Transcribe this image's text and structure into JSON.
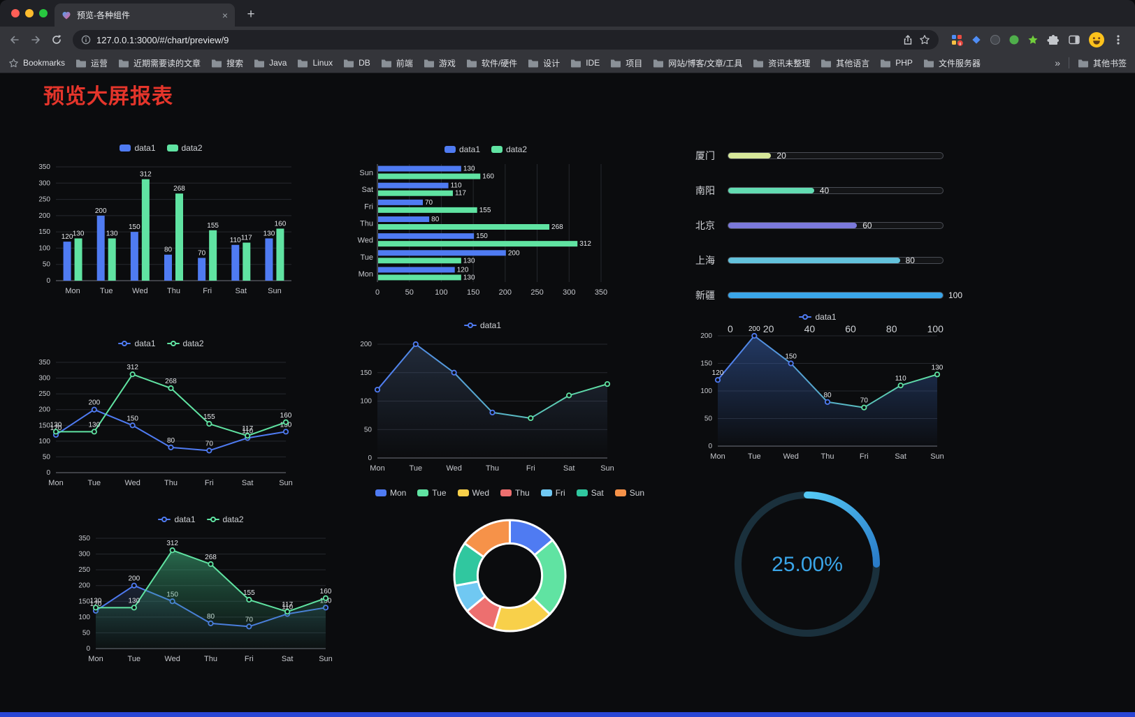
{
  "browser": {
    "tab_title": "预览-各种组件",
    "url": "127.0.0.1:3000/#/chart/preview/9",
    "bookmarks_label": "Bookmarks",
    "bookmarks": [
      "运营",
      "近期需要读的文章",
      "搜索",
      "Java",
      "Linux",
      "DB",
      "前端",
      "游戏",
      "软件/硬件",
      "设计",
      "IDE",
      "项目",
      "网站/博客/文章/工具",
      "资讯未整理",
      "其他语言",
      "PHP",
      "文件服务器"
    ],
    "overflow": "»",
    "other_bookmarks": "其他书签"
  },
  "page": {
    "title": "预览大屏报表",
    "title_color": "#e5352b",
    "bottom_bar_color": "#2a46d4"
  },
  "chart_data": [
    {
      "type": "bar",
      "legend": [
        "data1",
        "data2"
      ],
      "categories": [
        "Mon",
        "Tue",
        "Wed",
        "Thu",
        "Fri",
        "Sat",
        "Sun"
      ],
      "series": [
        {
          "name": "data1",
          "color": "#4f7bf2",
          "values": [
            120,
            200,
            150,
            80,
            70,
            110,
            130
          ]
        },
        {
          "name": "data2",
          "color": "#60e3a2",
          "values": [
            130,
            130,
            312,
            268,
            155,
            117,
            160
          ]
        }
      ],
      "ylim": [
        0,
        350
      ],
      "ystep": 50,
      "show_labels": true
    },
    {
      "type": "hbar",
      "legend": [
        "data1",
        "data2"
      ],
      "categories": [
        "Mon",
        "Tue",
        "Wed",
        "Thu",
        "Fri",
        "Sat",
        "Sun"
      ],
      "series": [
        {
          "name": "data1",
          "color": "#4f7bf2",
          "values": [
            120,
            200,
            150,
            80,
            70,
            110,
            130
          ]
        },
        {
          "name": "data2",
          "color": "#60e3a2",
          "values": [
            130,
            130,
            312,
            268,
            155,
            117,
            160
          ]
        }
      ],
      "xlim": [
        0,
        350
      ],
      "xstep": 50,
      "show_labels": true
    },
    {
      "type": "progress",
      "max": 100,
      "rows": [
        {
          "label": "厦门",
          "value": 20,
          "color": "#d7e89a"
        },
        {
          "label": "南阳",
          "value": 40,
          "color": "#63dcb2"
        },
        {
          "label": "北京",
          "value": 60,
          "color": "#7b79da"
        },
        {
          "label": "上海",
          "value": 80,
          "color": "#63c2dc"
        },
        {
          "label": "新疆",
          "value": 100,
          "color": "#3aa5e8"
        }
      ],
      "ticks": [
        0,
        20,
        40,
        60,
        80,
        100
      ]
    },
    {
      "type": "line",
      "legend": [
        "data1",
        "data2"
      ],
      "categories": [
        "Mon",
        "Tue",
        "Wed",
        "Thu",
        "Fri",
        "Sat",
        "Sun"
      ],
      "series": [
        {
          "name": "data1",
          "color": "#4f7bf2",
          "values": [
            120,
            200,
            150,
            80,
            70,
            110,
            130
          ]
        },
        {
          "name": "data2",
          "color": "#60e3a2",
          "values": [
            130,
            130,
            312,
            268,
            155,
            117,
            160
          ]
        }
      ],
      "ylim": [
        0,
        350
      ],
      "ystep": 50,
      "show_labels": true
    },
    {
      "type": "line",
      "legend": [
        "data1"
      ],
      "categories": [
        "Mon",
        "Tue",
        "Wed",
        "Thu",
        "Fri",
        "Sat",
        "Sun"
      ],
      "series": [
        {
          "name": "data1",
          "gradient": [
            "#4f7bf2",
            "#60e3a2"
          ],
          "values": [
            120,
            200,
            150,
            80,
            70,
            110,
            130
          ],
          "area": "shadow"
        }
      ],
      "ylim": [
        0,
        200
      ],
      "ystep": 50,
      "show_labels": false
    },
    {
      "type": "line",
      "legend": [
        "data1"
      ],
      "categories": [
        "Mon",
        "Tue",
        "Wed",
        "Thu",
        "Fri",
        "Sat",
        "Sun"
      ],
      "series": [
        {
          "name": "data1",
          "gradient": [
            "#4f7bf2",
            "#60e3a2"
          ],
          "values": [
            120,
            200,
            150,
            80,
            70,
            110,
            130
          ],
          "area": "blue"
        }
      ],
      "ylim": [
        0,
        200
      ],
      "ystep": 50,
      "show_labels": true
    },
    {
      "type": "line",
      "legend": [
        "data1",
        "data2"
      ],
      "categories": [
        "Mon",
        "Tue",
        "Wed",
        "Thu",
        "Fri",
        "Sat",
        "Sun"
      ],
      "series": [
        {
          "name": "data1",
          "color": "#4f7bf2",
          "values": [
            120,
            200,
            150,
            80,
            70,
            110,
            130
          ],
          "area": "blueSoft"
        },
        {
          "name": "data2",
          "color": "#60e3a2",
          "values": [
            130,
            130,
            312,
            268,
            155,
            117,
            160
          ],
          "area": "green"
        }
      ],
      "ylim": [
        0,
        350
      ],
      "ystep": 50,
      "show_labels": true
    },
    {
      "type": "pie",
      "legend": [
        "Mon",
        "Tue",
        "Wed",
        "Thu",
        "Fri",
        "Sat",
        "Sun"
      ],
      "values": [
        120,
        200,
        150,
        80,
        70,
        110,
        130
      ],
      "colors": [
        "#4f7bf2",
        "#60e3a2",
        "#f8d04a",
        "#ed6f6f",
        "#70c8f2",
        "#30c79f",
        "#f69249"
      ]
    },
    {
      "type": "gauge",
      "percent": "25.00%",
      "value": 25,
      "color_start": "#55c9f5",
      "color_end": "#2a7cc9",
      "ring_color": "#1a303c",
      "text_color": "#3aa5e8"
    }
  ]
}
